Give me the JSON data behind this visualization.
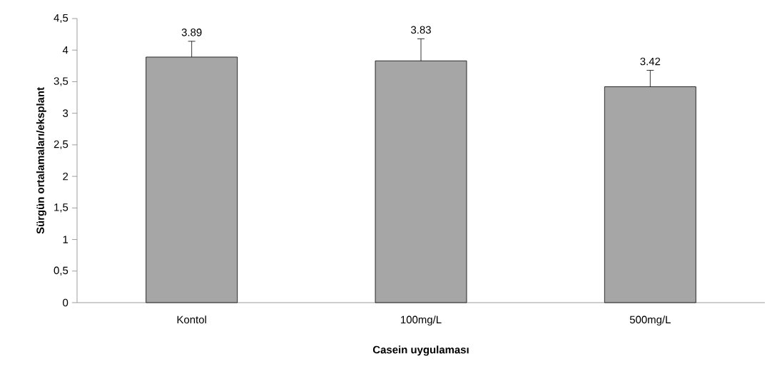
{
  "chart_data": {
    "type": "bar",
    "xlabel": "Casein uygulaması",
    "ylabel": "Sürgün ortalamaları/eksplant",
    "categories": [
      "Kontol",
      "100mg/L",
      "500mg/L"
    ],
    "values": [
      3.89,
      3.83,
      3.42
    ],
    "errors": [
      [
        3.89,
        4.14
      ],
      [
        3.83,
        4.18
      ],
      [
        3.42,
        3.68
      ]
    ],
    "color": "#a6a6a6",
    "data_labels": true,
    "ylim": [
      0,
      4.5
    ],
    "yticks": [
      0,
      {
        "value": 0.5,
        "label": "0,5"
      },
      1,
      {
        "value": 1.5,
        "label": "1,5"
      },
      2,
      {
        "value": 2.5,
        "label": "2,5"
      },
      3,
      {
        "value": 3.5,
        "label": "3,5"
      },
      4,
      {
        "value": 4.5,
        "label": "4,5"
      }
    ]
  }
}
